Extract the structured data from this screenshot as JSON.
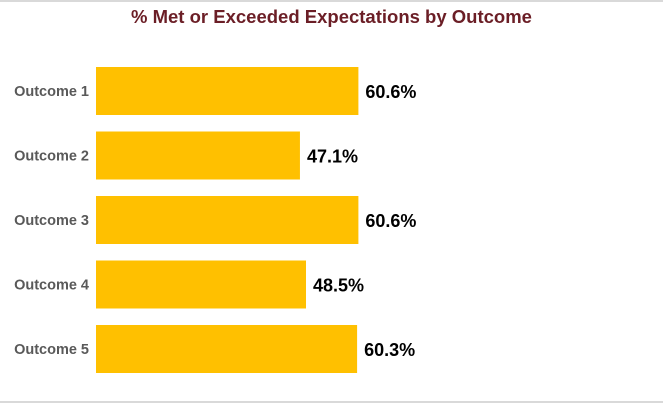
{
  "chart_data": {
    "type": "bar",
    "orientation": "horizontal",
    "title": "% Met or Exceeded Expectations by Outcome",
    "categories": [
      "Outcome 1",
      "Outcome 2",
      "Outcome 3",
      "Outcome 4",
      "Outcome 5"
    ],
    "values": [
      60.6,
      47.1,
      60.6,
      48.5,
      60.3
    ],
    "value_labels": [
      "60.6%",
      "47.1%",
      "60.6%",
      "48.5%",
      "60.3%"
    ],
    "xlim": [
      0,
      100
    ],
    "xlabel": "",
    "ylabel": "",
    "grid": false,
    "legend": "none",
    "bar_color": "#ffc000",
    "title_color": "#6b1e26"
  }
}
